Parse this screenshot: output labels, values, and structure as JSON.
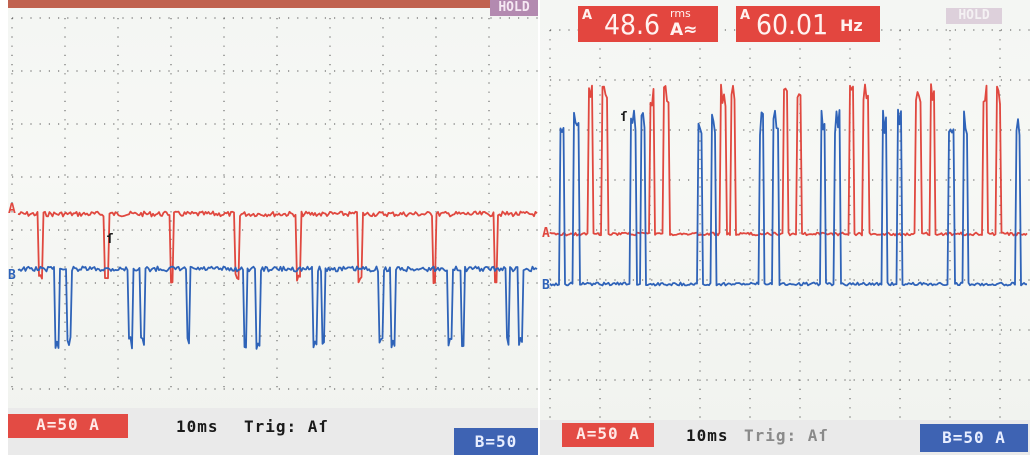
{
  "left_scope": {
    "hold_label": "HOLD",
    "channel_a_box": "A=50 A",
    "timebase": "10ms",
    "trigger": "Trig: Aſ",
    "channel_b_box": "B=50",
    "marker_a": "A",
    "marker_b": "B",
    "trigger_marker": "ſ"
  },
  "right_scope": {
    "readout_a_channel": "A",
    "readout_a_value": "48.6",
    "readout_a_unit_top": "rms",
    "readout_a_unit_bottom": "A≈",
    "readout_b_channel": "A",
    "readout_b_value": "60.01",
    "readout_b_unit": "Hz",
    "hold_label": "HOLD",
    "channel_a_box": "A=50 A",
    "timebase": "10ms",
    "trigger": "Trig: Aſ",
    "channel_b_box": "B=50 A",
    "marker_a": "A",
    "marker_b": "B",
    "trigger_marker": "ſ"
  },
  "colors": {
    "trace_a": "#e0483f",
    "trace_b": "#2f63b8",
    "grid_dot": "#3a3a3a"
  },
  "waveforms": {
    "left_trace_a_pulse_times_div": [
      0.25,
      1.05,
      1.85,
      2.65,
      3.4,
      4.15,
      5.05,
      5.8
    ],
    "left_trace_b_pulse_times_div": [
      0.45,
      0.6,
      1.35,
      1.5,
      2.05,
      2.75,
      2.9,
      3.6,
      3.7,
      4.4,
      4.55,
      5.25,
      5.4,
      5.95,
      6.1
    ],
    "right_trace_a_pulse_times_div": [
      0.4,
      0.55,
      1.05,
      1.2,
      1.8,
      1.9,
      2.45,
      2.6,
      3.15,
      3.3,
      3.85,
      4.0,
      4.55,
      4.7
    ],
    "right_trace_b_pulse_times_div": [
      0.1,
      0.25,
      0.85,
      0.95,
      1.55,
      1.7,
      2.2,
      2.35,
      2.85,
      3.0,
      3.5,
      3.65,
      4.2,
      4.35,
      4.9,
      5.05
    ]
  }
}
